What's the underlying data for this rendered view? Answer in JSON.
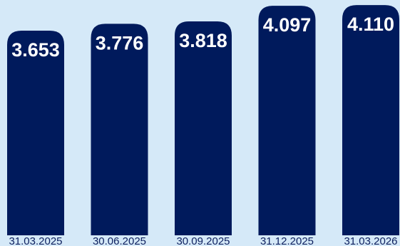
{
  "chart_data": {
    "type": "bar",
    "categories": [
      "31.03.2025",
      "30.06.2025",
      "30.09.2025",
      "31.12.2025",
      "31.03.2026"
    ],
    "values": [
      3.653,
      3.776,
      3.818,
      4.097,
      4.11
    ],
    "value_labels": [
      "3.653",
      "3.776",
      "3.818",
      "4.097",
      "4.110"
    ],
    "title": "",
    "xlabel": "",
    "ylabel": "",
    "ylim": [
      0,
      4.2
    ],
    "grid": false,
    "legend": "none",
    "bar_color": "#001a5c",
    "label_color": "#ffffff",
    "tick_color": "#0c1f5e",
    "background": "#d5e9f8"
  }
}
